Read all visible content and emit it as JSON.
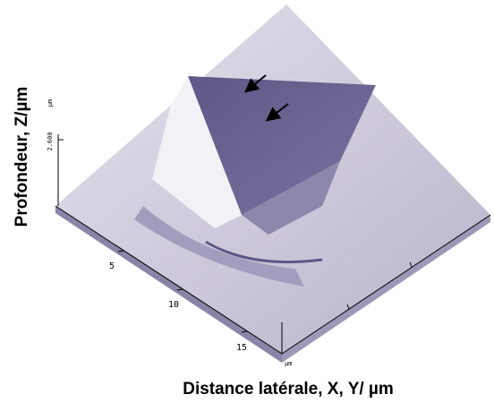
{
  "figure": {
    "z_axis_title": "Profondeur, Z/µm",
    "xy_axis_title": "Distance latérale, X, Y/ µm",
    "z_tick": "2.600",
    "z_unit": "µm",
    "xy_ticks": [
      "5",
      "10",
      "15"
    ],
    "xy_unit": "µm"
  }
}
